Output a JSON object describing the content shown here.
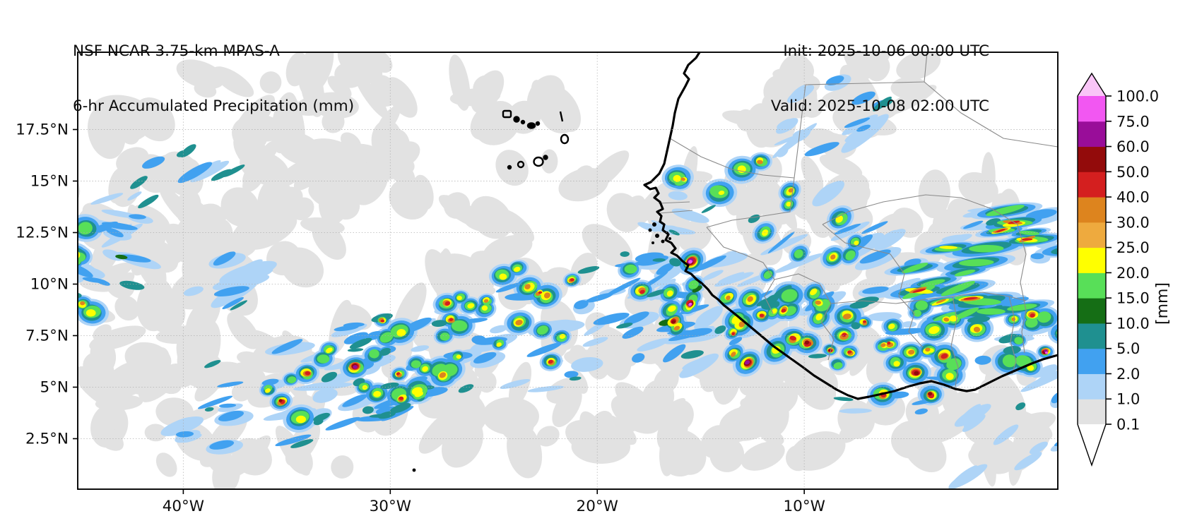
{
  "header": {
    "title_line1": "NSF NCAR 3.75-km MPAS-A",
    "title_line2": "6-hr Accumulated Precipitation (mm)",
    "init": "Init: 2025-10-06 00:00 UTC",
    "valid": "Valid: 2025-10-08 02:00 UTC"
  },
  "axes": {
    "x_ticks": [
      {
        "label": "40°W",
        "lon": -40
      },
      {
        "label": "30°W",
        "lon": -30
      },
      {
        "label": "20°W",
        "lon": -20
      },
      {
        "label": "10°W",
        "lon": -10
      }
    ],
    "y_ticks": [
      {
        "label": "17.5°N",
        "lat": 17.5
      },
      {
        "label": "15°N",
        "lat": 15
      },
      {
        "label": "12.5°N",
        "lat": 12.5
      },
      {
        "label": "10°N",
        "lat": 10
      },
      {
        "label": "7.5°N",
        "lat": 7.5
      },
      {
        "label": "5°N",
        "lat": 5
      },
      {
        "label": "2.5°N",
        "lat": 2.5
      }
    ]
  },
  "colorbar": {
    "units_label": "[mm]",
    "tick_labels": [
      "0.1",
      "1.0",
      "2.0",
      "5.0",
      "10.0",
      "15.0",
      "20.0",
      "25.0",
      "30.0",
      "40.0",
      "50.0",
      "60.0",
      "75.0",
      "100.0"
    ]
  },
  "chart_data": {
    "type": "heatmap",
    "title": "6-hr Accumulated Precipitation (mm)",
    "model": "NSF NCAR 3.75-km MPAS-A",
    "init_time": "2025-10-06 00:00 UTC",
    "valid_time": "2025-10-08 02:00 UTC",
    "units": "mm",
    "extent": {
      "lon_min": -45.1,
      "lon_max": 2.25,
      "lat_min": 0.05,
      "lat_max": 21.25
    },
    "grid": true,
    "levels": [
      0.1,
      1.0,
      2.0,
      5.0,
      10.0,
      15.0,
      20.0,
      25.0,
      30.0,
      40.0,
      50.0,
      60.0,
      75.0,
      100.0
    ],
    "seg_colors": [
      "#e2e2e2",
      "#aed4f7",
      "#41a1f0",
      "#1f9090",
      "#156e15",
      "#58df58",
      "#ffff00",
      "#eeaa3e",
      "#dd841e",
      "#d41f1f",
      "#930b0b",
      "#990d99",
      "#f257f2"
    ],
    "over_color": "#f9c5f7",
    "under_color": "#ffffff",
    "land_outline_color": "#000000",
    "border_color": "#8a8a8a",
    "features": [
      {
        "name": "nw-atlantic-cloud-shield",
        "kind": "wash",
        "lon": -37.6,
        "lat": 16.9,
        "w": 17.8,
        "h": 8.2,
        "ang": -20,
        "n": 60
      },
      {
        "name": "nw-cloud-extension",
        "kind": "wash",
        "lon": -34.2,
        "lat": 13.5,
        "w": 13.7,
        "h": 5.8,
        "ang": -25,
        "n": 45
      },
      {
        "name": "west-cloud-mass",
        "kind": "wash",
        "lon": -42.0,
        "lat": 9.1,
        "w": 7.9,
        "h": 11.0,
        "ang": 10,
        "n": 42
      },
      {
        "name": "itcz-stratiform-band",
        "kind": "wash",
        "lon": -28.4,
        "lat": 5.6,
        "w": 32.4,
        "h": 9.6,
        "ang": -7,
        "n": 120
      },
      {
        "name": "east-atlantic-stratiform",
        "kind": "wash",
        "lon": -13.0,
        "lat": 4.9,
        "w": 17.8,
        "h": 7.5,
        "ang": -5,
        "n": 65
      },
      {
        "name": "guinea-cloud-shield",
        "kind": "wash",
        "lon": -11.3,
        "lat": 10.8,
        "w": 12.3,
        "h": 9.6,
        "ang": -20,
        "n": 48
      },
      {
        "name": "mali-cloud-patch",
        "kind": "wash",
        "lon": -8.6,
        "lat": 18.6,
        "w": 10.2,
        "h": 5.1,
        "ang": -15,
        "n": 30
      },
      {
        "name": "mid-atlantic-patches",
        "kind": "wash",
        "lon": -20.9,
        "lat": 13.5,
        "w": 14.3,
        "h": 6.2,
        "ang": -10,
        "n": 26
      },
      {
        "name": "sahel-patches",
        "kind": "wash",
        "lon": -4.5,
        "lat": 13.5,
        "w": 10.2,
        "h": 6.8,
        "ang": 0,
        "n": 26
      },
      {
        "name": "se-corner-patches",
        "kind": "wash",
        "lon": -1.1,
        "lat": 3.9,
        "w": 8.9,
        "h": 5.5,
        "ang": -10,
        "n": 24
      },
      {
        "name": "top-mid-patch",
        "kind": "wash",
        "lon": -25.0,
        "lat": 18.6,
        "w": 6.8,
        "h": 2.7,
        "ang": 0,
        "n": 12
      },
      {
        "name": "west-edge-convection",
        "kind": "cells",
        "lon": -44.8,
        "lat": 10.3,
        "w": 1.4,
        "h": 5.1,
        "ang": 5,
        "max": 50,
        "n": 7
      },
      {
        "name": "west-edge-rainband",
        "kind": "streaks",
        "lon": -43.7,
        "lat": 10.8,
        "w": 4.1,
        "h": 7.5,
        "ang": 15,
        "max": 10,
        "n": 16
      },
      {
        "name": "nw-blue-streaks",
        "kind": "streaks",
        "lon": -41.0,
        "lat": 14.5,
        "w": 9.6,
        "h": 3.4,
        "ang": -27,
        "max": 5,
        "n": 15
      },
      {
        "name": "west-blue-patch",
        "kind": "streaks",
        "lon": -38.3,
        "lat": 10.3,
        "w": 4.1,
        "h": 3.4,
        "ang": -20,
        "max": 5,
        "n": 8
      },
      {
        "name": "itcz-west-showers",
        "kind": "streaks",
        "lon": -33.5,
        "lat": 5.1,
        "w": 15.7,
        "h": 5.8,
        "ang": -13,
        "max": 5,
        "n": 40
      },
      {
        "name": "itcz-mid-showers",
        "kind": "streaks",
        "lon": -29.7,
        "lat": 6.1,
        "w": 10.0,
        "h": 5.0,
        "ang": -13,
        "max": 5,
        "n": 24
      },
      {
        "name": "itcz-sw-cell-cluster",
        "kind": "cells",
        "lon": -31.1,
        "lat": 5.5,
        "w": 10.9,
        "h": 4.1,
        "ang": -13,
        "max": 60,
        "n": 18
      },
      {
        "name": "itcz-central-cells",
        "kind": "cells",
        "lon": -26.3,
        "lat": 7.0,
        "w": 11.3,
        "h": 4.8,
        "ang": -13,
        "max": 50,
        "n": 13
      },
      {
        "name": "itcz-north-cells",
        "kind": "cells",
        "lon": -27.7,
        "lat": 8.6,
        "w": 13.0,
        "h": 3.8,
        "ang": -10,
        "max": 40,
        "n": 9
      },
      {
        "name": "itcz-east-cells",
        "kind": "cells",
        "lon": -22.2,
        "lat": 9.1,
        "w": 9.6,
        "h": 4.1,
        "ang": -12,
        "max": 40,
        "n": 8
      },
      {
        "name": "east-atlantic-showers",
        "kind": "streaks",
        "lon": -20.2,
        "lat": 8.4,
        "w": 16.4,
        "h": 6.8,
        "ang": -13,
        "max": 5,
        "n": 36
      },
      {
        "name": "coast-approach-showers",
        "kind": "streaks",
        "lon": -16.1,
        "lat": 9.1,
        "w": 10.2,
        "h": 6.2,
        "ang": -20,
        "max": 10,
        "n": 20
      },
      {
        "name": "senegal-coast-rain",
        "kind": "streaks",
        "lon": -16.6,
        "lat": 11.8,
        "w": 4.4,
        "h": 6.5,
        "ang": 15,
        "max": 15,
        "n": 12
      },
      {
        "name": "senegal-cell-line",
        "kind": "cells",
        "lon": -13.3,
        "lat": 15.3,
        "w": 6.1,
        "h": 2.1,
        "ang": -5,
        "max": 40,
        "n": 7
      },
      {
        "name": "guinea-rain-shield",
        "kind": "streaks",
        "lon": -11.8,
        "lat": 10.6,
        "w": 13.0,
        "h": 9.0,
        "ang": -30,
        "max": 5,
        "n": 22
      },
      {
        "name": "guinea-mcs",
        "kind": "cells",
        "lon": -11.8,
        "lat": 10.4,
        "w": 10.2,
        "h": 7.9,
        "ang": -35,
        "max": 75,
        "n": 32
      },
      {
        "name": "guinea-mcs-se-cells",
        "kind": "cells",
        "lon": -9.6,
        "lat": 8.4,
        "w": 5.5,
        "h": 4.1,
        "ang": 0,
        "max": 50,
        "n": 8
      },
      {
        "name": "mali-showers",
        "kind": "streaks",
        "lon": -8.9,
        "lat": 18.6,
        "w": 6.8,
        "h": 4.1,
        "ang": -30,
        "max": 10,
        "n": 14
      },
      {
        "name": "ivory-coast-rainband",
        "kind": "streaks",
        "lon": -4.8,
        "lat": 6.8,
        "w": 10.2,
        "h": 6.8,
        "ang": -5,
        "max": 5,
        "n": 16
      },
      {
        "name": "ivory-coast-cluster",
        "kind": "cells",
        "lon": -4.8,
        "lat": 6.8,
        "w": 7.5,
        "h": 5.1,
        "ang": -5,
        "max": 60,
        "n": 22
      },
      {
        "name": "east-mcs-rain-shield",
        "kind": "streaks",
        "lon": -1.2,
        "lat": 10.3,
        "w": 10.9,
        "h": 6.8,
        "ang": -10,
        "max": 5,
        "n": 22
      },
      {
        "name": "east-mcs-core",
        "kind": "ecells",
        "lon": -1.4,
        "lat": 11.3,
        "w": 9.2,
        "h": 4.4,
        "ang": -8,
        "max": 40,
        "n": 15
      },
      {
        "name": "east-mcs-green-streaks",
        "kind": "ecells",
        "lon": -1.2,
        "lat": 9.6,
        "w": 8.5,
        "h": 3.1,
        "ang": -10,
        "max": 15,
        "n": 8
      },
      {
        "name": "right-edge-cluster",
        "kind": "cells",
        "lon": 1.3,
        "lat": 7.1,
        "w": 4.1,
        "h": 3.4,
        "ang": 0,
        "max": 75,
        "n": 10
      },
      {
        "name": "se-gulf-showers",
        "kind": "streaks",
        "lon": 0.3,
        "lat": 3.2,
        "w": 7.5,
        "h": 4.4,
        "ang": -30,
        "max": 10,
        "n": 12
      }
    ]
  }
}
